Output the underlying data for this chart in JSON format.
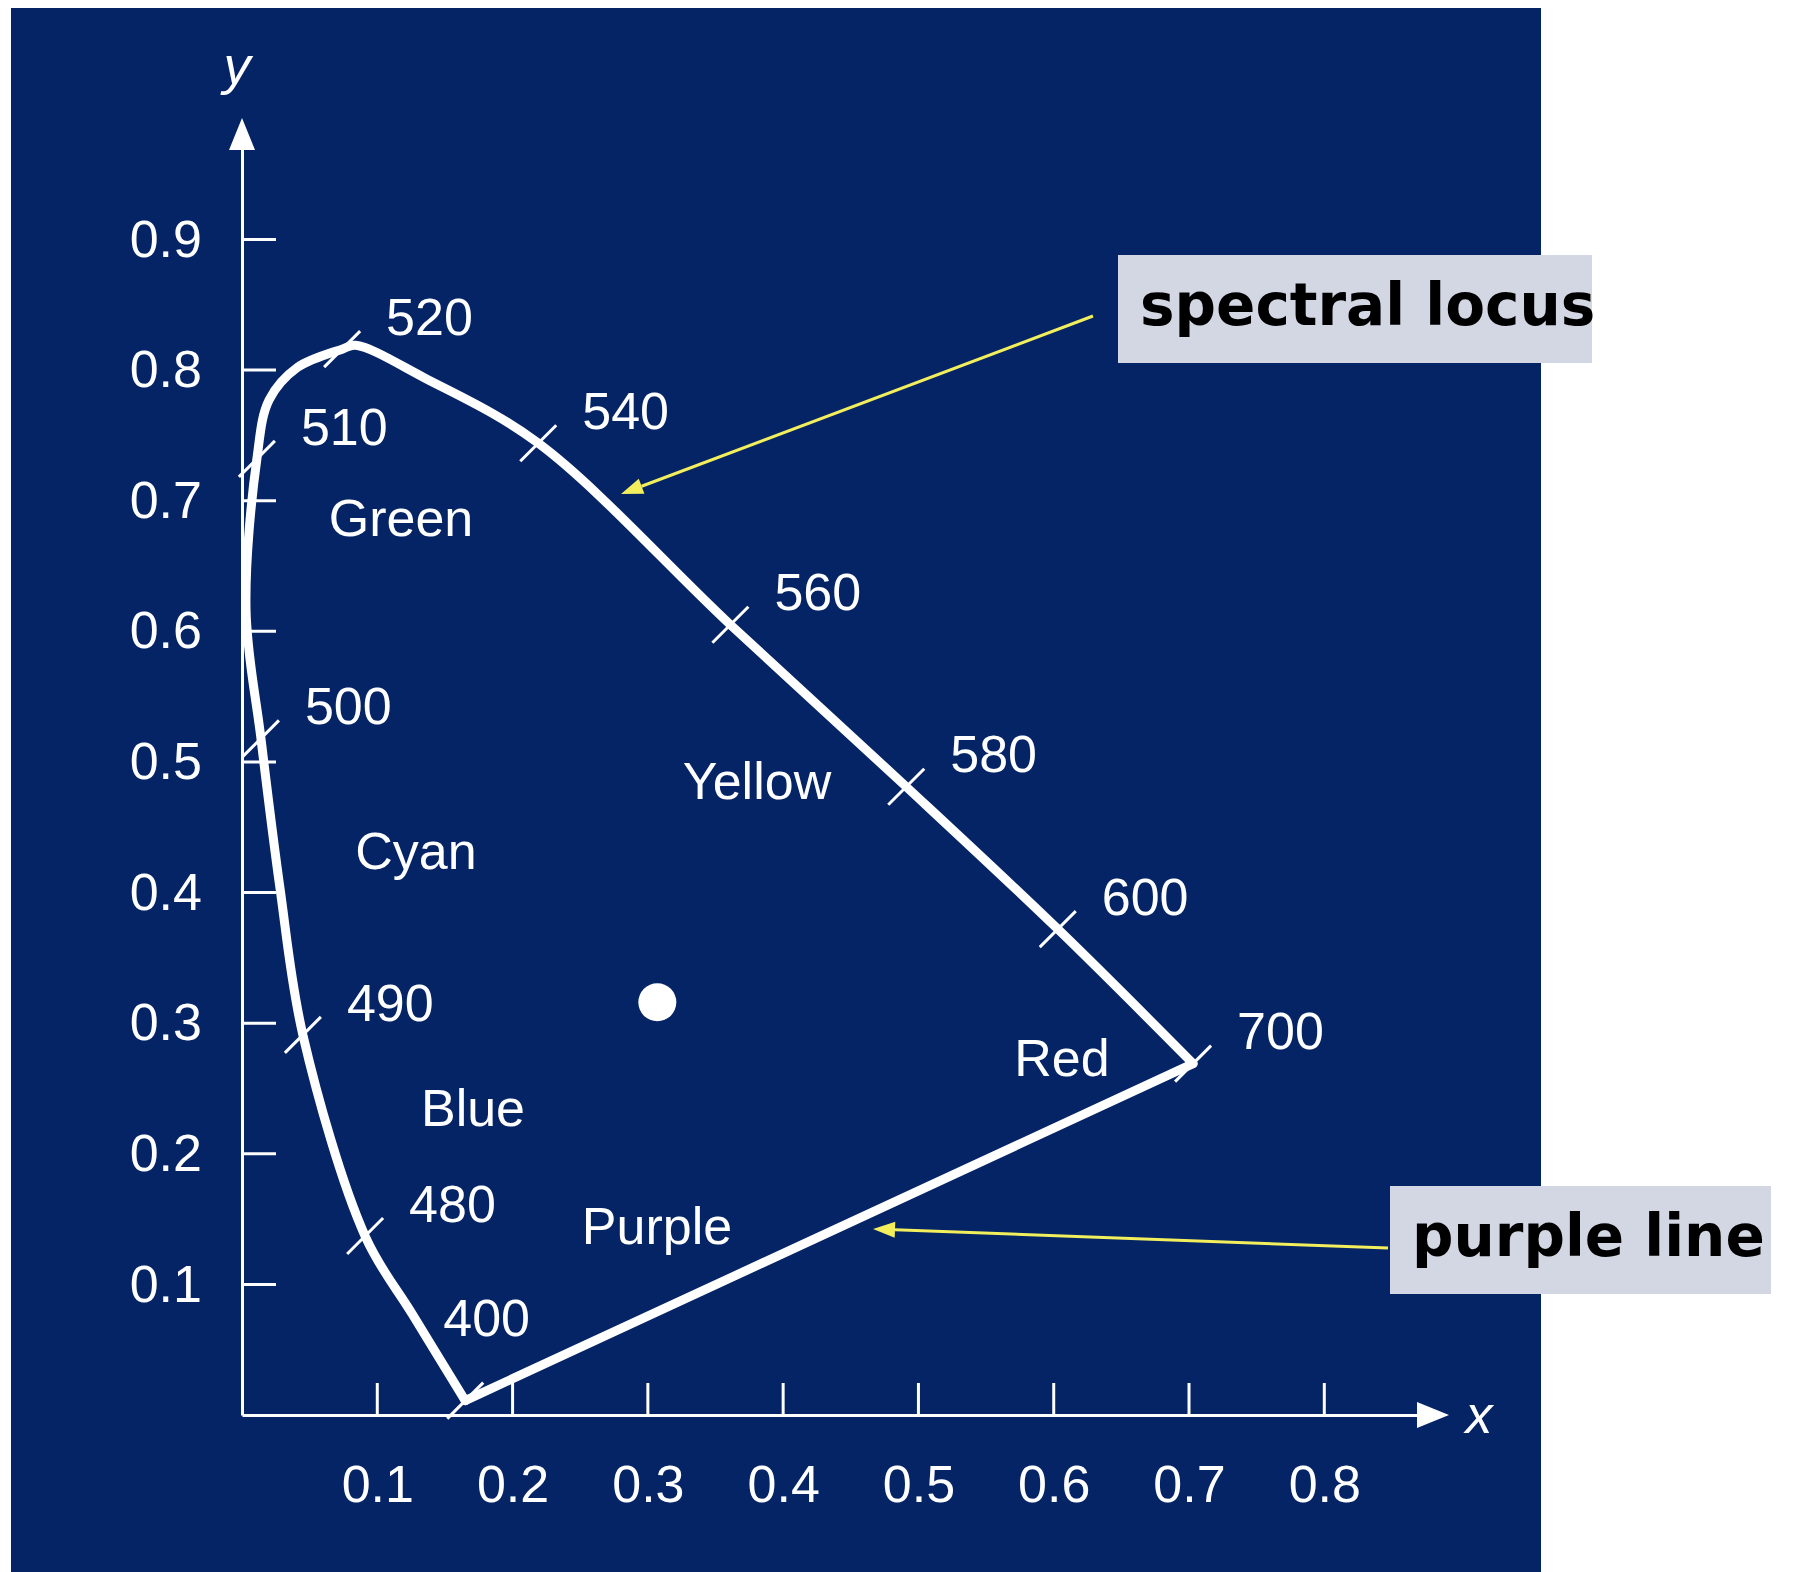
{
  "chart_data": {
    "type": "line",
    "xlabel": "x",
    "ylabel": "y",
    "xlim": [
      0,
      0.87
    ],
    "ylim": [
      0,
      0.97
    ],
    "xticks": [
      0.1,
      0.2,
      0.3,
      0.4,
      0.5,
      0.6,
      0.7,
      0.8
    ],
    "yticks": [
      0.1,
      0.2,
      0.3,
      0.4,
      0.5,
      0.6,
      0.7,
      0.8,
      0.9
    ],
    "line_style": "solid",
    "series": [
      {
        "color": "#ffffff",
        "x": [
          0.165,
          0.126,
          0.091,
          0.045,
          0.028,
          0.014,
          0.003,
          0.011,
          0.02,
          0.041,
          0.074,
          0.084,
          0.135,
          0.219,
          0.361,
          0.491,
          0.603,
          0.703
        ],
        "values": [
          0.011,
          0.077,
          0.137,
          0.291,
          0.404,
          0.518,
          0.616,
          0.732,
          0.777,
          0.802,
          0.816,
          0.819,
          0.794,
          0.744,
          0.605,
          0.481,
          0.372,
          0.269
        ]
      },
      {
        "color": "#ffffff",
        "x": [
          0.165,
          0.703
        ],
        "values": [
          0.011,
          0.269
        ]
      },
      {
        "type": "scatter",
        "color": "#ffffff",
        "marker": "circle",
        "x": [
          0.307
        ],
        "values": [
          0.316
        ]
      }
    ],
    "annotations": [
      {
        "text": "400",
        "x": 0.165,
        "y": 0.011
      },
      {
        "text": "480",
        "x": 0.091,
        "y": 0.137
      },
      {
        "text": "490",
        "x": 0.045,
        "y": 0.291
      },
      {
        "text": "500",
        "x": 0.014,
        "y": 0.518
      },
      {
        "text": "510",
        "x": 0.011,
        "y": 0.732
      },
      {
        "text": "520",
        "x": 0.074,
        "y": 0.816
      },
      {
        "text": "540",
        "x": 0.219,
        "y": 0.744
      },
      {
        "text": "560",
        "x": 0.361,
        "y": 0.605
      },
      {
        "text": "580",
        "x": 0.491,
        "y": 0.481
      },
      {
        "text": "600",
        "x": 0.603,
        "y": 0.372
      },
      {
        "text": "700",
        "x": 0.703,
        "y": 0.269
      },
      "Green",
      "Cyan",
      "Yellow",
      "Blue",
      "Purple",
      "Red",
      "spectral locus",
      "purple line"
    ]
  }
}
